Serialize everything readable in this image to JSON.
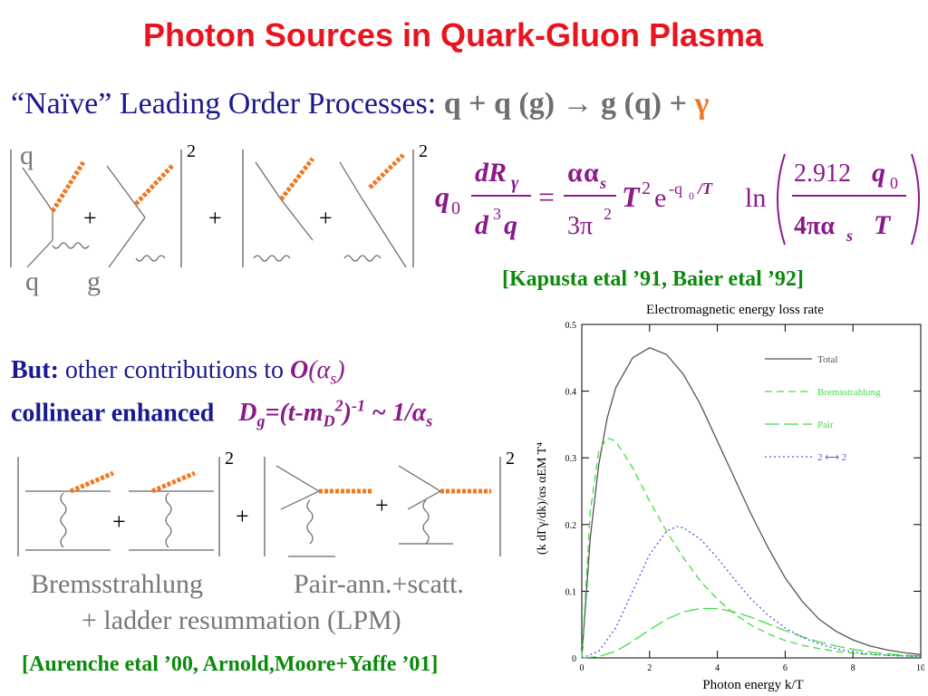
{
  "title": "Photon Sources in Quark-Gluon Plasma",
  "leading_order": {
    "intro": "“Naïve” Leading Order Processes:",
    "process": "q + q (g) → g (q) +",
    "gamma": "γ"
  },
  "diagram1": {
    "label_q_top": "q",
    "label_q_bottom": "q",
    "label_g_bottom": "g",
    "plus": "+",
    "square": "2"
  },
  "formula": {
    "q0": "q",
    "zero": "0",
    "dR": "dR",
    "gamma_sub": "γ",
    "d3q": "d",
    "three": "3",
    "q": "q",
    "equals": "=",
    "alpha": "α",
    "alpha_s": "α",
    "s": "s",
    "three_pi": "3π",
    "two": "2",
    "T": "T",
    "exp": "e",
    "exp_arg": "-q",
    "exp_sub": "0",
    "exp_over": "/T",
    "ln": "ln",
    "num_coef": "2.912",
    "four_pi_alpha": "4πα",
    "den_T": "T"
  },
  "ref1": "[Kapusta etal ’91, Baier etal ’92]",
  "but_line": {
    "but": "But:",
    "text": "other contributions to",
    "order": "O",
    "order_arg": "(α",
    "order_sub": "s",
    "close": ")"
  },
  "collinear_line": {
    "text": "collinear enhanced",
    "dg": "D",
    "dg_sub": "g",
    "dg_rest": "=(t-m",
    "md_sub": "D",
    "md_sup": "2",
    "pow": ")",
    "pow_sup": "-1",
    "tail": " ~ 1/α",
    "tail_sub": "s"
  },
  "diagram2": {
    "plus": "+",
    "square": "2"
  },
  "captions": {
    "brems": "Bremsstrahlung",
    "pair": "Pair-ann.+scatt.",
    "ladder": "+ ladder resummation (LPM)"
  },
  "ref2": "[Aurenche etal ’00, Arnold,Moore+Yaffe ’01]",
  "chart_data": {
    "type": "line",
    "title": "Electromagnetic energy loss rate",
    "xlabel": "Photon energy k/T",
    "ylabel": "(k dΓγ/dk)/αs αEM T⁴",
    "xlim": [
      0,
      10
    ],
    "ylim": [
      0,
      0.5
    ],
    "xticks": [
      "0",
      "2",
      "4",
      "6",
      "8",
      "10"
    ],
    "yticks": [
      "0",
      "0.1",
      "0.2",
      "0.3",
      "0.4",
      "0.5"
    ],
    "legend_position": "top-right",
    "series": [
      {
        "name": "Total",
        "color": "#555555",
        "dash": "solid",
        "x": [
          0,
          0.25,
          0.5,
          0.75,
          1,
          1.5,
          2,
          2.5,
          3,
          3.5,
          4,
          4.5,
          5,
          5.5,
          6,
          6.5,
          7,
          7.5,
          8,
          8.5,
          9,
          9.5,
          10
        ],
        "y": [
          0,
          0.18,
          0.29,
          0.36,
          0.405,
          0.45,
          0.465,
          0.455,
          0.425,
          0.38,
          0.325,
          0.27,
          0.215,
          0.165,
          0.12,
          0.085,
          0.058,
          0.04,
          0.027,
          0.018,
          0.012,
          0.008,
          0.005
        ]
      },
      {
        "name": "Bremsstrahlung",
        "color": "#44dd44",
        "dash": "8,5",
        "x": [
          0,
          0.25,
          0.5,
          0.75,
          1,
          1.5,
          2,
          2.5,
          3,
          3.5,
          4,
          4.5,
          5,
          5.5,
          6,
          6.5,
          7,
          7.5,
          8,
          8.5,
          9,
          9.5,
          10
        ],
        "y": [
          0,
          0.22,
          0.31,
          0.33,
          0.325,
          0.285,
          0.235,
          0.19,
          0.15,
          0.115,
          0.088,
          0.066,
          0.049,
          0.036,
          0.026,
          0.019,
          0.014,
          0.01,
          0.007,
          0.005,
          0.004,
          0.003,
          0.002
        ]
      },
      {
        "name": "Pair",
        "color": "#44dd44",
        "dash": "16,5",
        "x": [
          0,
          0.5,
          1,
          1.5,
          2,
          2.5,
          3,
          3.5,
          4,
          4.5,
          5,
          5.5,
          6,
          6.5,
          7,
          7.5,
          8,
          8.5,
          9,
          9.5,
          10
        ],
        "y": [
          0,
          0.002,
          0.01,
          0.025,
          0.042,
          0.058,
          0.069,
          0.074,
          0.074,
          0.069,
          0.061,
          0.051,
          0.041,
          0.032,
          0.024,
          0.018,
          0.013,
          0.009,
          0.006,
          0.004,
          0.003
        ]
      },
      {
        "name": "2 ⟷ 2",
        "color": "#5555ee",
        "dash": "2,3",
        "x": [
          0,
          0.5,
          1,
          1.5,
          2,
          2.5,
          2.8,
          3,
          3.5,
          4,
          4.5,
          5,
          5.5,
          6,
          6.5,
          7,
          7.5,
          8,
          8.5,
          9,
          9.5,
          10
        ],
        "y": [
          0,
          0.01,
          0.045,
          0.1,
          0.155,
          0.19,
          0.197,
          0.195,
          0.178,
          0.15,
          0.118,
          0.088,
          0.064,
          0.045,
          0.031,
          0.021,
          0.014,
          0.009,
          0.006,
          0.004,
          0.003,
          0.002
        ]
      }
    ]
  }
}
